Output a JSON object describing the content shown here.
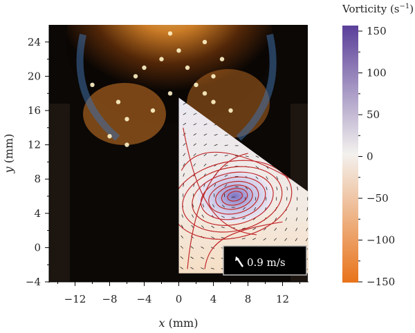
{
  "chart_data": {
    "type": "heatmap",
    "title": "",
    "xlabel_var": "x",
    "xlabel_unit": " (mm)",
    "ylabel_var": "y",
    "ylabel_unit": " (mm)",
    "xlim": [
      -15,
      15
    ],
    "ylim": [
      -4,
      26
    ],
    "x_ticks": [
      -12,
      -8,
      -4,
      0,
      4,
      8,
      12
    ],
    "x_tick_labels": [
      "−12",
      "−8",
      "−4",
      "0",
      "4",
      "8",
      "12"
    ],
    "y_ticks": [
      -4,
      0,
      4,
      8,
      12,
      16,
      20,
      24
    ],
    "y_tick_labels": [
      "−4",
      "0",
      "4",
      "8",
      "12",
      "16",
      "20",
      "24"
    ],
    "colorbar": {
      "label_main": "Vorticity (s",
      "label_exp": "−1",
      "label_close": ")",
      "range": [
        -150,
        150
      ],
      "ticks": [
        150,
        100,
        50,
        0,
        -50,
        -100,
        -150
      ],
      "tick_labels": [
        "150",
        "100",
        "50",
        "0",
        "−50",
        "−100",
        "−150"
      ],
      "colors": {
        "positive": "#5a3f9a",
        "zero": "#f3f1ee",
        "negative": "#e8731a"
      }
    },
    "overlay": {
      "vortex_center": [
        6.5,
        6
      ],
      "streamline_color": "#c0282a",
      "region": [
        [
          0,
          17.5
        ],
        [
          15,
          6.5
        ],
        [
          15,
          -3
        ],
        [
          0,
          -3
        ]
      ]
    },
    "scale_arrow": {
      "label": "0.9 m/s"
    }
  }
}
